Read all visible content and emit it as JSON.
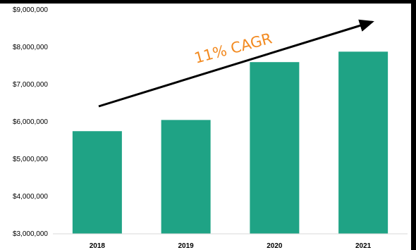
{
  "chart_data": {
    "type": "bar",
    "title": "",
    "xlabel": "",
    "ylabel": "",
    "categories": [
      "2018",
      "2019",
      "2020",
      "2021"
    ],
    "values": [
      5750000,
      6050000,
      7600000,
      7880000
    ],
    "ylim": [
      3000000,
      9000000
    ],
    "yticks": [
      3000000,
      4000000,
      5000000,
      6000000,
      7000000,
      8000000,
      9000000
    ],
    "ytick_labels": [
      "$3,000,000",
      "$4,000,000",
      "$5,000,000",
      "$6,000,000",
      "$7,000,000",
      "$8,000,000",
      "$9,000,000"
    ],
    "grid": false,
    "legend": "none",
    "bar_color": "#1fa385",
    "annotation": {
      "text": "11% CAGR",
      "color": "#f28a20",
      "arrow_color": "#000000"
    }
  }
}
